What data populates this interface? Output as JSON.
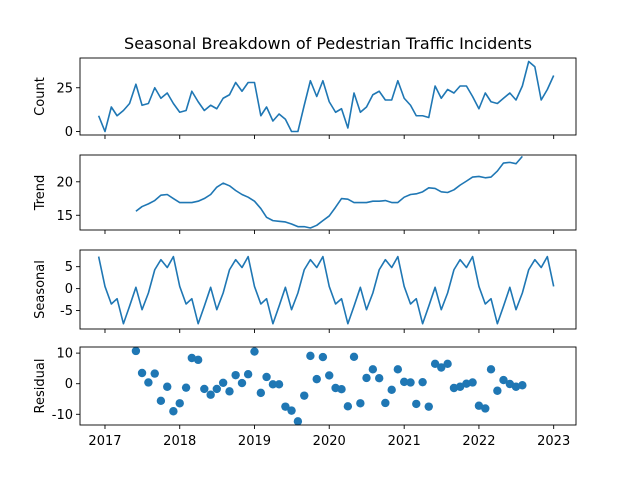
{
  "chart_data": {
    "type": "line",
    "title": "Seasonal Breakdown of Pedestrian Traffic Incidents",
    "colors": {
      "line": "#1f77b4",
      "marker": "#1f77b4",
      "frame": "#000000"
    },
    "grid": false,
    "xlim": [
      "2016-09-01",
      "2023-04-20"
    ],
    "x_ticks": [
      {
        "date": "2017-01-01",
        "label": "2017"
      },
      {
        "date": "2018-01-01",
        "label": "2018"
      },
      {
        "date": "2019-01-01",
        "label": "2019"
      },
      {
        "date": "2020-01-01",
        "label": "2020"
      },
      {
        "date": "2021-01-01",
        "label": "2021"
      },
      {
        "date": "2022-01-01",
        "label": "2022"
      },
      {
        "date": "2023-01-01",
        "label": "2023"
      }
    ],
    "panels": [
      {
        "ylabel": "Count",
        "kind": "line",
        "ylim": [
          -2,
          42
        ],
        "yticks": [
          0,
          25
        ],
        "start": "2016-12-01",
        "values": [
          9,
          0,
          14,
          9,
          12,
          16,
          27,
          15,
          16,
          25,
          19,
          22,
          16,
          11,
          12,
          23,
          17,
          12,
          15,
          13,
          19,
          21,
          28,
          23,
          28,
          28,
          9,
          14,
          6,
          10,
          7,
          0,
          0,
          15,
          29,
          20,
          29,
          17,
          11,
          13,
          2,
          22,
          11,
          14,
          21,
          23,
          18,
          18,
          29,
          19,
          15,
          9,
          9,
          8,
          26,
          19,
          24,
          22,
          26,
          26,
          20,
          13,
          22,
          17,
          16,
          19,
          22,
          18,
          26,
          40,
          37,
          18,
          24,
          32
        ]
      },
      {
        "ylabel": "Trend",
        "kind": "line",
        "ylim": [
          12.8,
          24.0
        ],
        "yticks": [
          15,
          20
        ],
        "start": "2017-06-01",
        "values": [
          15.6,
          16.3,
          16.7,
          17.2,
          18.0,
          18.1,
          17.5,
          16.9,
          16.9,
          16.9,
          17.1,
          17.5,
          18.1,
          19.2,
          19.8,
          19.4,
          18.7,
          18.1,
          17.7,
          17.1,
          16.0,
          14.7,
          14.2,
          14.1,
          14.0,
          13.7,
          13.3,
          13.3,
          13.1,
          13.5,
          14.2,
          14.9,
          16.2,
          17.5,
          17.4,
          16.9,
          16.9,
          16.9,
          17.1,
          17.1,
          17.2,
          16.9,
          16.9,
          17.7,
          18.1,
          18.2,
          18.5,
          19.1,
          19.0,
          18.5,
          18.4,
          18.8,
          19.5,
          20.1,
          20.7,
          20.8,
          20.6,
          20.7,
          21.6,
          22.8,
          22.9,
          22.7,
          23.8
        ]
      },
      {
        "ylabel": "Seasonal",
        "kind": "line",
        "ylim": [
          -9.2,
          8.8
        ],
        "yticks": [
          -5,
          0,
          5
        ],
        "start": "2016-12-01",
        "values": [
          7.3,
          0.5,
          -3.5,
          -2.3,
          -8.0,
          -4.0,
          0.3,
          -4.8,
          -1.0,
          4.3,
          6.6,
          4.8,
          7.3,
          0.5,
          -3.5,
          -2.3,
          -8.0,
          -4.0,
          0.3,
          -4.8,
          -1.0,
          4.3,
          6.6,
          4.8,
          7.3,
          0.5,
          -3.5,
          -2.3,
          -8.0,
          -4.0,
          0.3,
          -4.8,
          -1.0,
          4.3,
          6.6,
          4.8,
          7.3,
          0.5,
          -3.5,
          -2.3,
          -8.0,
          -4.0,
          0.3,
          -4.8,
          -1.0,
          4.3,
          6.6,
          4.8,
          7.3,
          0.5,
          -3.5,
          -2.3,
          -8.0,
          -4.0,
          0.3,
          -4.8,
          -1.0,
          4.3,
          6.6,
          4.8,
          7.3,
          0.5,
          -3.5,
          -2.3,
          -8.0,
          -4.0,
          0.3,
          -4.8,
          -1.0,
          4.3,
          6.6,
          4.8,
          7.3,
          0.5
        ]
      },
      {
        "ylabel": "Residual",
        "kind": "scatter",
        "ylim": [
          -13.5,
          12.0
        ],
        "yticks": [
          -10,
          0,
          10
        ],
        "start": "2017-06-01",
        "values": [
          10.7,
          3.5,
          0.4,
          3.3,
          -5.6,
          -1.0,
          -9.0,
          -6.4,
          -1.3,
          8.4,
          7.8,
          -1.7,
          -3.6,
          -1.7,
          0.3,
          -2.5,
          2.8,
          0.2,
          3.1,
          10.5,
          -3.0,
          2.2,
          -0.2,
          -0.2,
          -7.5,
          -8.8,
          -12.3,
          -3.9,
          9.1,
          1.5,
          8.7,
          2.7,
          -1.4,
          -1.8,
          -7.4,
          8.8,
          -6.4,
          1.9,
          4.7,
          1.8,
          -6.3,
          -2.0,
          4.7,
          0.6,
          0.4,
          -6.6,
          0.5,
          -7.5,
          6.5,
          5.3,
          6.5,
          -1.4,
          -1.0,
          0.0,
          0.4,
          -7.2,
          -8.1,
          4.7,
          -2.3,
          1.2,
          -0.1,
          -1.0,
          -0.5
        ]
      }
    ]
  }
}
